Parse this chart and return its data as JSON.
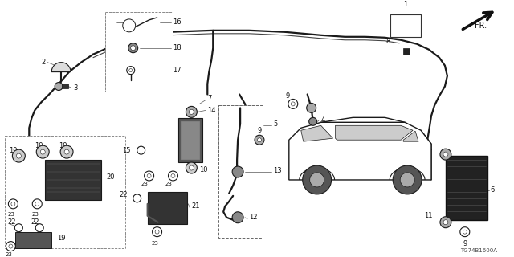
{
  "bg_color": "#ffffff",
  "diagram_code": "TG74B1600A",
  "wire_color": "#1a1a1a",
  "label_color": "#111111",
  "font_size": 6.0,
  "lw_main": 1.6,
  "lw_thin": 0.9
}
